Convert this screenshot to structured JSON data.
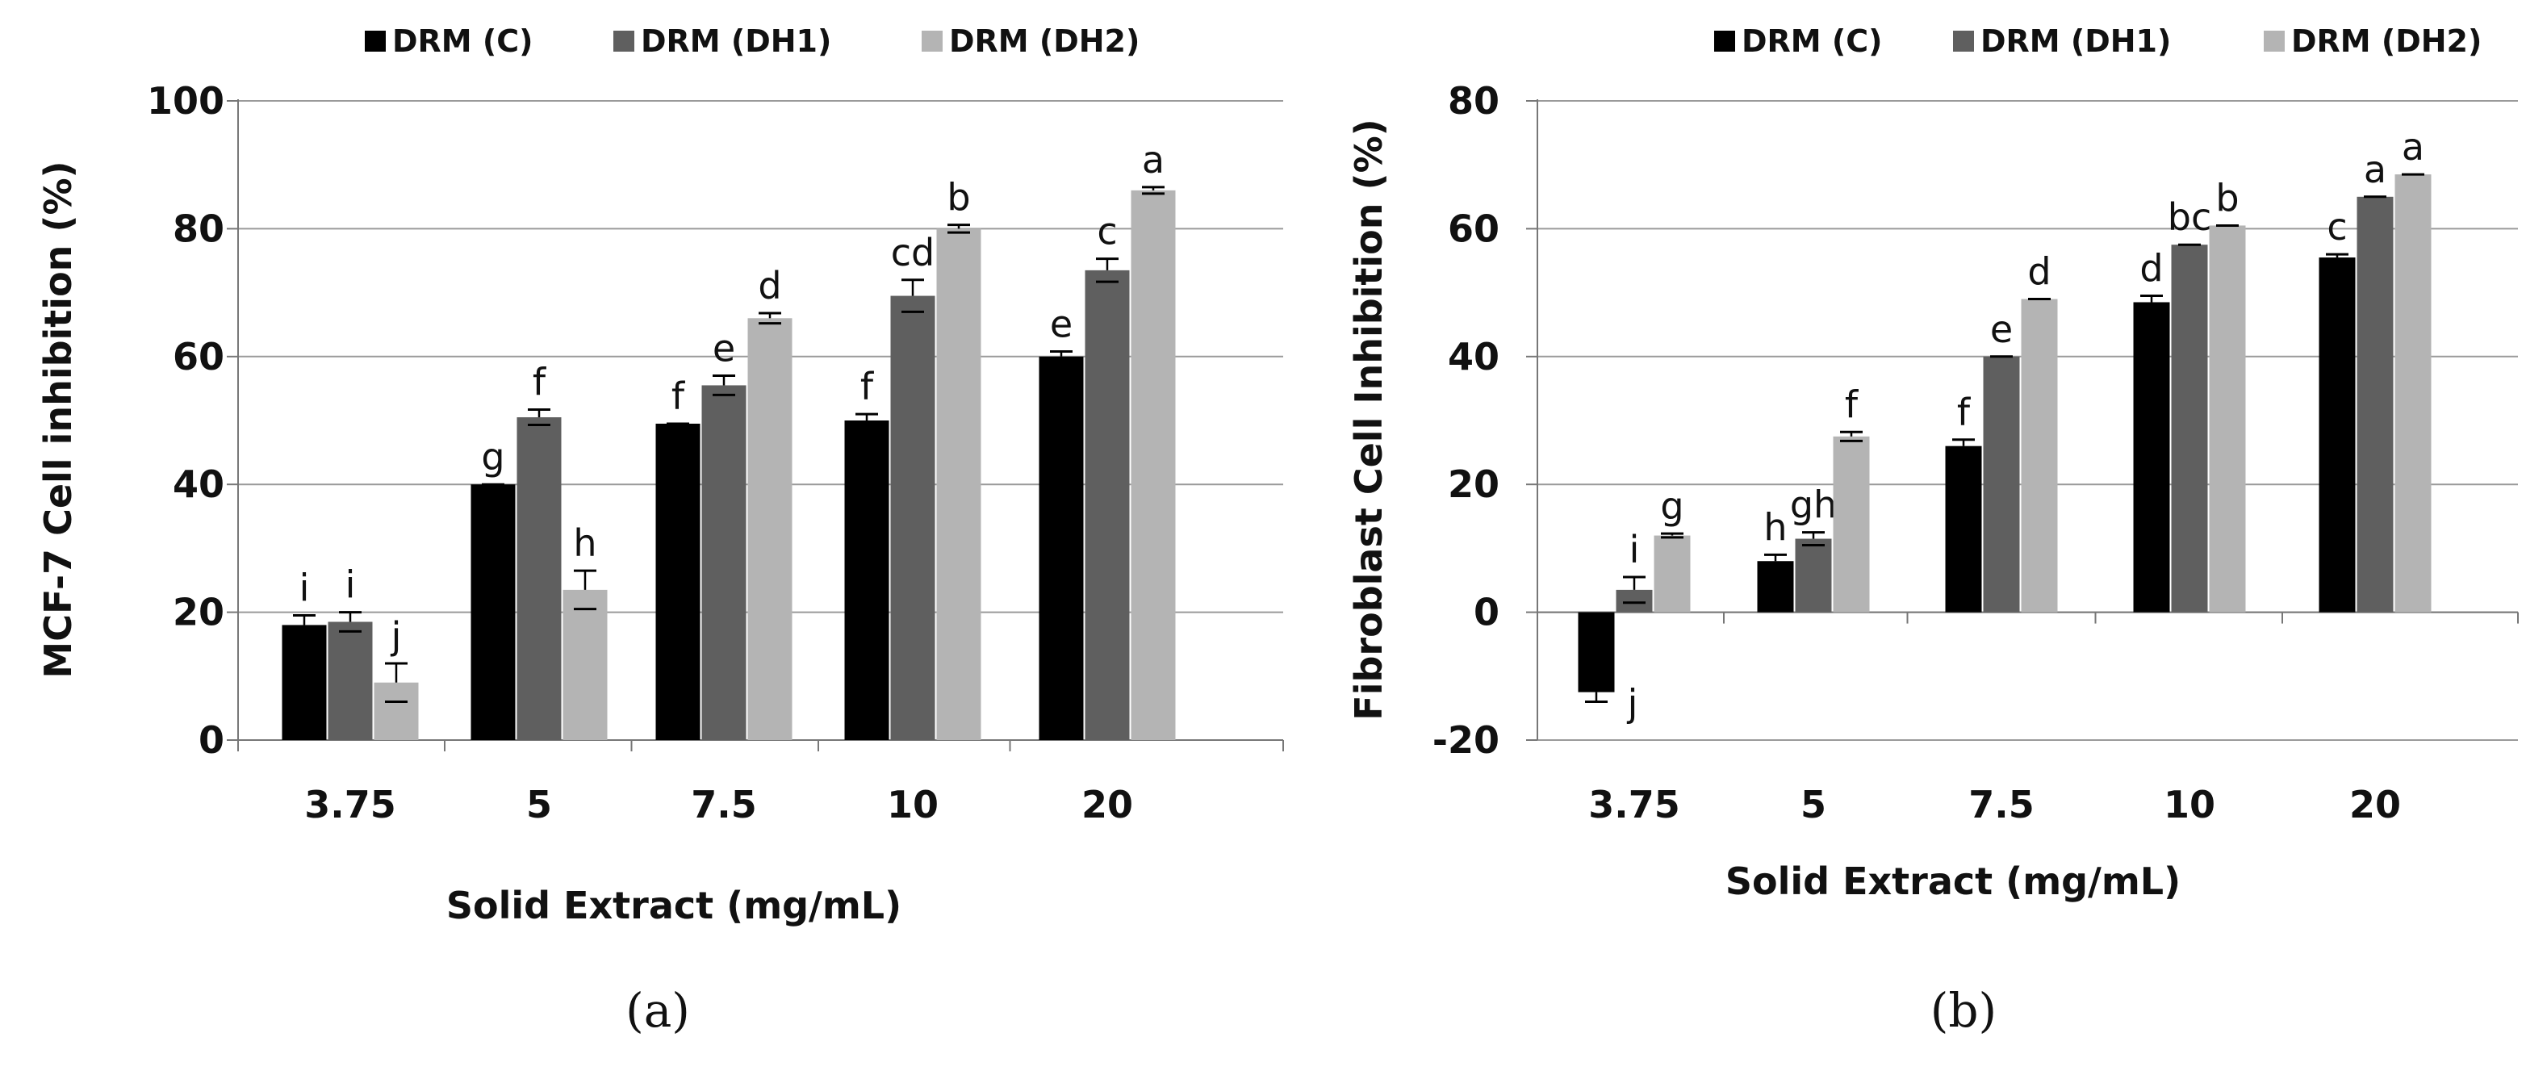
{
  "colors": {
    "c": "#000000",
    "dh1": "#5f5f5f",
    "dh2": "#b4b4b4",
    "grid": "#9a9a9a",
    "axis": "#777777"
  },
  "chart_data": [
    {
      "type": "bar",
      "caption": "(a)",
      "categories": [
        "3.75",
        "5",
        "7.5",
        "10",
        "20"
      ],
      "xlabel": "Solid Extract (mg/mL)",
      "ylabel": "MCF-7 Cell inhibition (%)",
      "ylim": [
        0,
        100
      ],
      "yticks": [
        "0",
        "20",
        "40",
        "60",
        "80",
        "100"
      ],
      "legend_position": "top-right",
      "series": [
        {
          "name": "DRM (C)",
          "values": [
            18,
            40,
            49.5,
            50,
            60
          ],
          "errors": [
            1.5,
            0,
            0,
            1,
            0.8
          ],
          "letters": [
            "i",
            "g",
            "f",
            "f",
            "e"
          ]
        },
        {
          "name": "DRM (DH1)",
          "values": [
            18.5,
            50.5,
            55.5,
            69.5,
            73.5
          ],
          "errors": [
            1.5,
            1.2,
            1.5,
            2.5,
            1.8
          ],
          "letters": [
            "i",
            "f",
            "e",
            "cd",
            "c"
          ]
        },
        {
          "name": "DRM (DH2)",
          "values": [
            9,
            23.5,
            66,
            80,
            86
          ],
          "errors": [
            3,
            3,
            0.8,
            0.6,
            0.5
          ],
          "letters": [
            "j",
            "h",
            "d",
            "b",
            "a"
          ]
        }
      ]
    },
    {
      "type": "bar",
      "caption": "(b)",
      "categories": [
        "3.75",
        "5",
        "7.5",
        "10",
        "20"
      ],
      "xlabel": "Solid Extract  (mg/mL)",
      "ylabel": "Fibroblast Cell Inhibition  (%)",
      "ylim": [
        -20,
        80
      ],
      "yticks": [
        "-20",
        "0",
        "20",
        "40",
        "60",
        "80"
      ],
      "legend_position": "top-right",
      "series": [
        {
          "name": "DRM (C)",
          "values": [
            -12.5,
            8,
            26,
            48.5,
            55.5
          ],
          "errors": [
            1.5,
            1,
            1,
            1,
            0.5
          ],
          "letters": [
            "j",
            "h",
            "f",
            "d",
            "c"
          ]
        },
        {
          "name": "DRM (DH1)",
          "values": [
            3.5,
            11.5,
            40,
            57.5,
            65
          ],
          "errors": [
            2,
            1,
            0,
            0,
            0
          ],
          "letters": [
            "i",
            "gh",
            "e",
            "bc",
            "a"
          ]
        },
        {
          "name": "DRM (DH2)",
          "values": [
            12,
            27.5,
            49,
            60.5,
            68.5
          ],
          "errors": [
            0.3,
            0.7,
            0,
            0,
            0
          ],
          "letters": [
            "g",
            "f",
            "d",
            "b",
            "a"
          ]
        }
      ]
    }
  ]
}
